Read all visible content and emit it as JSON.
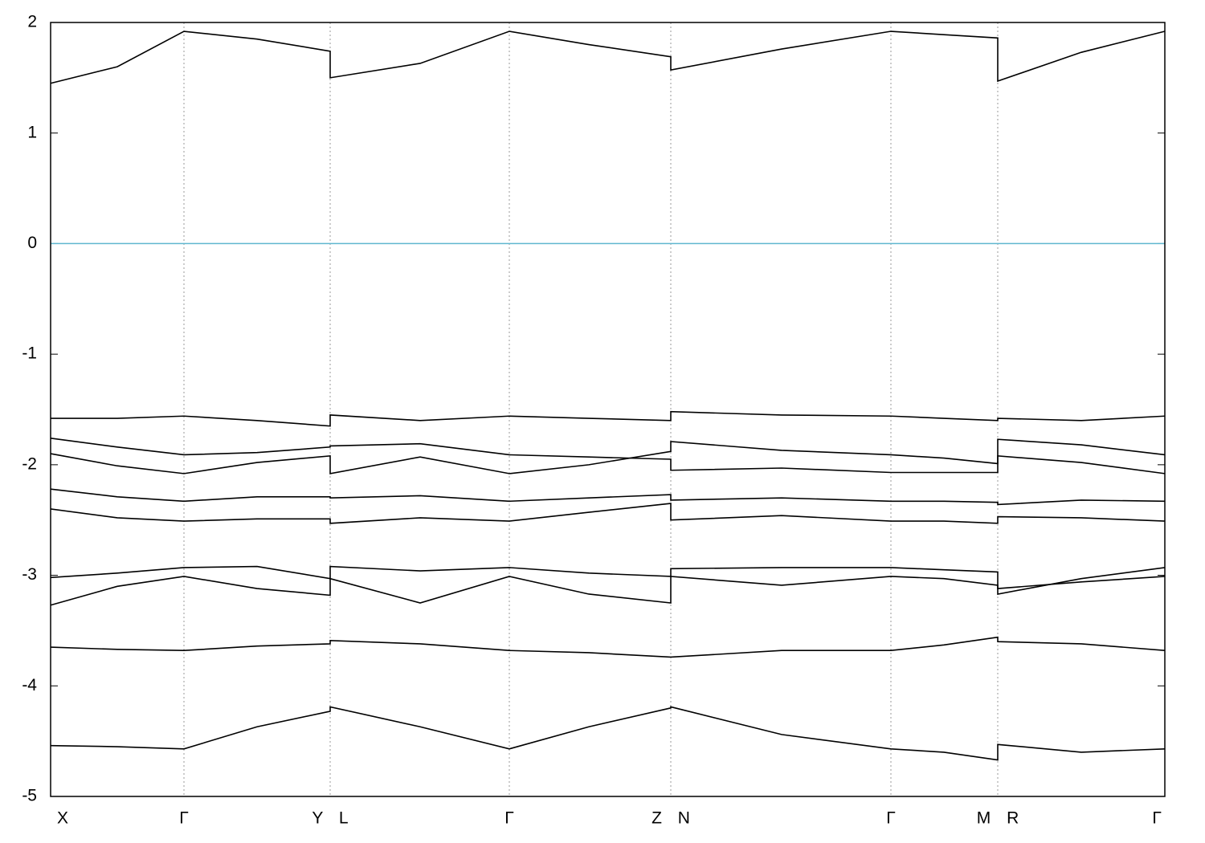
{
  "chart_data": {
    "type": "line",
    "x": [
      0,
      0.083,
      0.166,
      0.257,
      0.348,
      0.348,
      0.46,
      0.571,
      0.67,
      0.772,
      0.772,
      0.91,
      1.046,
      1.112,
      1.179,
      1.179,
      1.283,
      1.387
    ],
    "xlim": [
      0,
      1.387
    ],
    "xticks": [
      {
        "value": 0,
        "label": "X"
      },
      {
        "value": 0.166,
        "label": "Γ"
      },
      {
        "value": 0.348,
        "label": "Y L"
      },
      {
        "value": 0.571,
        "label": "Γ"
      },
      {
        "value": 0.772,
        "label": "Z N"
      },
      {
        "value": 1.046,
        "label": "Γ"
      },
      {
        "value": 1.179,
        "label": "M R"
      },
      {
        "value": 1.387,
        "label": "Γ"
      }
    ],
    "ylim": [
      -5,
      2
    ],
    "yticks": [
      -5,
      -4,
      -3,
      -2,
      -1,
      0,
      1,
      2
    ],
    "grid": "x",
    "hlines": [
      {
        "value": 0,
        "color": "#5fb6cf"
      }
    ],
    "series": [
      {
        "color": "#000000",
        "values": [
          1.45,
          1.6,
          1.92,
          1.85,
          1.74,
          1.5,
          1.63,
          1.92,
          1.8,
          1.69,
          1.57,
          1.76,
          1.92,
          1.89,
          1.86,
          1.47,
          1.73,
          1.92
        ]
      },
      {
        "color": "#000000",
        "values": [
          -1.58,
          -1.58,
          -1.56,
          -1.6,
          -1.65,
          -1.55,
          -1.6,
          -1.56,
          -1.58,
          -1.6,
          -1.52,
          -1.55,
          -1.56,
          -1.58,
          -1.6,
          -1.58,
          -1.6,
          -1.56
        ]
      },
      {
        "color": "#000000",
        "values": [
          -1.76,
          -1.84,
          -1.91,
          -1.89,
          -1.84,
          -1.83,
          -1.81,
          -1.91,
          -1.93,
          -1.95,
          -2.05,
          -2.03,
          -2.07,
          -2.07,
          -2.07,
          -1.77,
          -1.82,
          -1.91
        ]
      },
      {
        "color": "#000000",
        "values": [
          -1.9,
          -2.01,
          -2.08,
          -1.98,
          -1.92,
          -2.08,
          -1.93,
          -2.08,
          -2.0,
          -1.88,
          -1.79,
          -1.87,
          -1.91,
          -1.94,
          -1.99,
          -1.92,
          -1.98,
          -2.08
        ]
      },
      {
        "color": "#000000",
        "values": [
          -2.22,
          -2.29,
          -2.33,
          -2.29,
          -2.29,
          -2.3,
          -2.28,
          -2.33,
          -2.3,
          -2.27,
          -2.32,
          -2.3,
          -2.33,
          -2.33,
          -2.34,
          -2.36,
          -2.32,
          -2.33
        ]
      },
      {
        "color": "#000000",
        "values": [
          -2.4,
          -2.48,
          -2.51,
          -2.49,
          -2.49,
          -2.53,
          -2.48,
          -2.51,
          -2.43,
          -2.35,
          -2.5,
          -2.46,
          -2.51,
          -2.51,
          -2.53,
          -2.47,
          -2.48,
          -2.51
        ]
      },
      {
        "color": "#000000",
        "values": [
          -3.02,
          -2.98,
          -2.93,
          -2.92,
          -3.03,
          -2.92,
          -2.96,
          -2.93,
          -2.98,
          -3.01,
          -2.94,
          -2.93,
          -2.93,
          -2.95,
          -2.97,
          -3.17,
          -3.03,
          -2.93
        ]
      },
      {
        "color": "#000000",
        "values": [
          -3.27,
          -3.1,
          -3.01,
          -3.12,
          -3.18,
          -3.03,
          -3.25,
          -3.01,
          -3.17,
          -3.25,
          -3.01,
          -3.09,
          -3.01,
          -3.03,
          -3.09,
          -3.12,
          -3.06,
          -3.01
        ]
      },
      {
        "color": "#000000",
        "values": [
          -3.65,
          -3.67,
          -3.68,
          -3.64,
          -3.62,
          -3.59,
          -3.62,
          -3.68,
          -3.7,
          -3.74,
          -3.74,
          -3.68,
          -3.68,
          -3.63,
          -3.56,
          -3.6,
          -3.62,
          -3.68
        ]
      },
      {
        "color": "#000000",
        "values": [
          -4.54,
          -4.55,
          -4.57,
          -4.37,
          -4.23,
          -4.19,
          -4.37,
          -4.57,
          -4.37,
          -4.2,
          -4.19,
          -4.44,
          -4.57,
          -4.6,
          -4.67,
          -4.53,
          -4.6,
          -4.57
        ]
      }
    ]
  }
}
